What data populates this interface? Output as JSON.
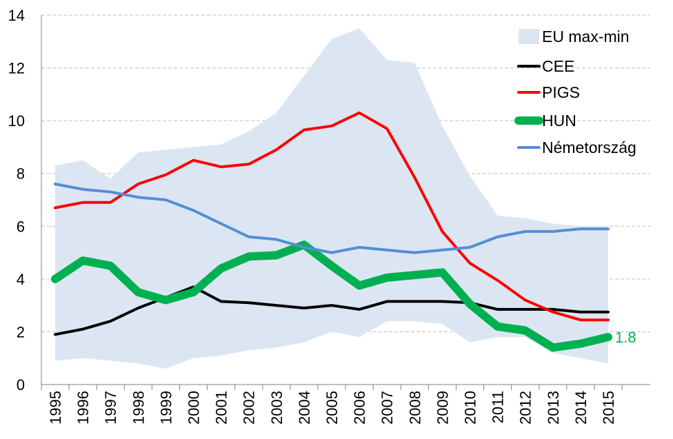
{
  "chart_data": {
    "type": "line",
    "title": "",
    "xlabel": "",
    "ylabel": "",
    "ylim": [
      0,
      14
    ],
    "yticks": [
      0,
      2,
      4,
      6,
      8,
      10,
      12,
      14
    ],
    "y_tick_labels": [
      "0",
      "2",
      "4",
      "6",
      "8",
      "10",
      "12",
      "14"
    ],
    "grid": "horizontal dashed",
    "legend_position": "top-right",
    "categories": [
      "1995",
      "1996",
      "1997",
      "1998",
      "1999",
      "2000",
      "2001",
      "2002",
      "2003",
      "2004",
      "2005",
      "2006",
      "2007",
      "2008",
      "2009",
      "2010",
      "2011",
      "2012",
      "2013",
      "2014",
      "2015"
    ],
    "band": {
      "name": "EU max-min",
      "color": "#dce6f2",
      "max": [
        8.3,
        8.5,
        7.8,
        8.8,
        8.9,
        9.0,
        9.1,
        9.6,
        10.3,
        11.7,
        13.1,
        13.5,
        12.3,
        12.2,
        9.8,
        7.9,
        6.4,
        6.3,
        6.1,
        6.0,
        6.0
      ],
      "min": [
        0.9,
        1.0,
        0.9,
        0.8,
        0.6,
        1.0,
        1.1,
        1.3,
        1.4,
        1.6,
        2.0,
        1.8,
        2.4,
        2.4,
        2.3,
        1.6,
        1.8,
        1.8,
        1.2,
        1.0,
        0.8
      ]
    },
    "series": [
      {
        "name": "CEE",
        "color": "#000000",
        "values": [
          1.9,
          2.1,
          2.4,
          2.9,
          3.3,
          3.7,
          3.15,
          3.1,
          3.0,
          2.9,
          3.0,
          2.85,
          3.15,
          3.15,
          3.15,
          3.1,
          2.85,
          2.85,
          2.85,
          2.75,
          2.75
        ]
      },
      {
        "name": "PIGS",
        "color": "#ff0000",
        "values": [
          6.7,
          6.9,
          6.9,
          7.6,
          7.95,
          8.5,
          8.25,
          8.35,
          8.9,
          9.65,
          9.8,
          10.3,
          9.7,
          7.85,
          5.8,
          4.6,
          3.95,
          3.2,
          2.75,
          2.45,
          2.45
        ]
      },
      {
        "name": "HUN",
        "color": "#00b050",
        "values": [
          4.0,
          4.7,
          4.5,
          3.5,
          3.2,
          3.5,
          4.4,
          4.85,
          4.9,
          5.3,
          4.5,
          3.75,
          4.05,
          4.15,
          4.25,
          3.05,
          2.2,
          2.05,
          1.4,
          1.55,
          1.8
        ]
      },
      {
        "name": "Németország",
        "color": "#558ed5",
        "values": [
          7.6,
          7.4,
          7.3,
          7.1,
          7.0,
          6.6,
          6.1,
          5.6,
          5.5,
          5.2,
          5.0,
          5.2,
          5.1,
          5.0,
          5.1,
          5.2,
          5.6,
          5.8,
          5.8,
          5.9,
          5.9
        ]
      }
    ],
    "legend": [
      {
        "label": "EU max-min",
        "kind": "band"
      },
      {
        "label": "CEE",
        "kind": "line"
      },
      {
        "label": "PIGS",
        "kind": "line"
      },
      {
        "label": "HUN",
        "kind": "line"
      },
      {
        "label": "Németország",
        "kind": "line"
      }
    ],
    "annotation": {
      "text": "1.8",
      "color": "#00b050",
      "series": "HUN",
      "category": "2015"
    }
  }
}
